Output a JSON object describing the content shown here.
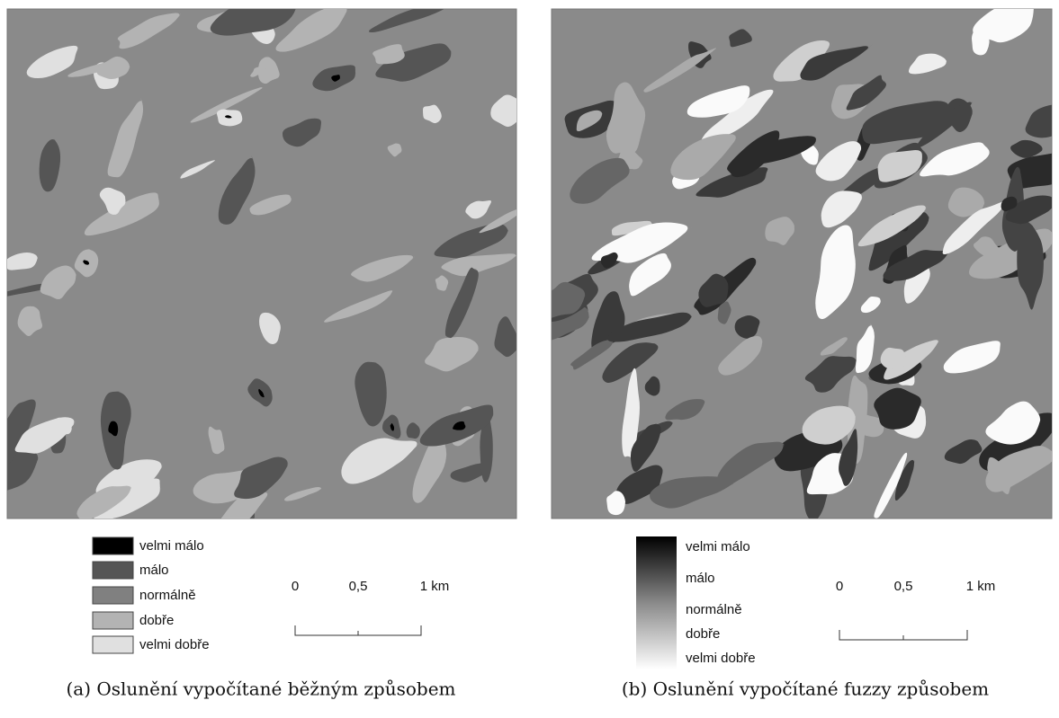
{
  "panels": [
    {
      "caption": "(a) Oslunění vypočítané běžným způsobem",
      "legend": [
        "velmi málo",
        "málo",
        "normálně",
        "dobře",
        "velmi dobře"
      ],
      "scale": [
        "0",
        "0,5",
        "1 km"
      ]
    },
    {
      "caption": "(b) Oslunění vypočítané fuzzy způsobem",
      "legend": [
        "velmi málo",
        "málo",
        "normálně",
        "dobře",
        "velmi dobře"
      ],
      "scale": [
        "0",
        "0,5",
        "1 km"
      ]
    }
  ]
}
